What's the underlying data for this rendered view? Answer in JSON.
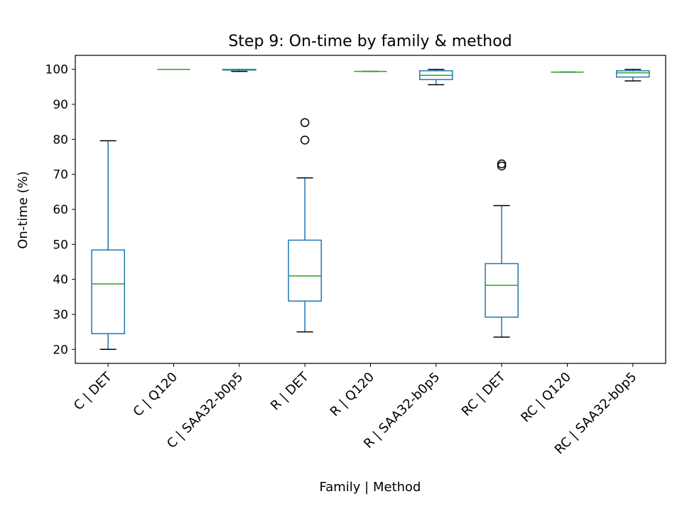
{
  "chart_data": {
    "type": "box",
    "title": "Step 9: On-time by family & method",
    "xlabel": "Family | Method",
    "ylabel": "On-time (%)",
    "ylim": [
      16,
      104
    ],
    "yticks": [
      20,
      30,
      40,
      50,
      60,
      70,
      80,
      90,
      100
    ],
    "grid": false,
    "categories": [
      "C | DET",
      "C | Q120",
      "C | SAA32-b0p5",
      "R | DET",
      "R | Q120",
      "R | SAA32-b0p5",
      "RC | DET",
      "RC | Q120",
      "RC | SAA32-b0p5"
    ],
    "boxes": [
      {
        "whisker_low": 20.0,
        "q1": 24.5,
        "median": 38.7,
        "q3": 48.4,
        "whisker_high": 79.6,
        "outliers": []
      },
      {
        "whisker_low": 100.0,
        "q1": 100.0,
        "median": 100.0,
        "q3": 100.0,
        "whisker_high": 100.0,
        "outliers": []
      },
      {
        "whisker_low": 99.4,
        "q1": 99.8,
        "median": 100.0,
        "q3": 100.0,
        "whisker_high": 100.0,
        "outliers": []
      },
      {
        "whisker_low": 25.0,
        "q1": 33.8,
        "median": 41.0,
        "q3": 51.2,
        "whisker_high": 69.0,
        "outliers": [
          79.8,
          84.8
        ]
      },
      {
        "whisker_low": 99.4,
        "q1": 99.4,
        "median": 99.4,
        "q3": 99.4,
        "whisker_high": 99.4,
        "outliers": []
      },
      {
        "whisker_low": 95.6,
        "q1": 97.1,
        "median": 98.3,
        "q3": 99.6,
        "whisker_high": 100.0,
        "outliers": []
      },
      {
        "whisker_low": 23.5,
        "q1": 29.2,
        "median": 38.3,
        "q3": 44.5,
        "whisker_high": 61.1,
        "outliers": [
          72.4,
          73.0
        ]
      },
      {
        "whisker_low": 99.2,
        "q1": 99.2,
        "median": 99.2,
        "q3": 99.2,
        "whisker_high": 99.2,
        "outliers": []
      },
      {
        "whisker_low": 96.7,
        "q1": 97.8,
        "median": 99.0,
        "q3": 99.6,
        "whisker_high": 100.0,
        "outliers": []
      }
    ],
    "colors": {
      "box": "#1f77b4",
      "median": "#2ca02c",
      "whisker_cap": "#000000",
      "outlier": "#000000",
      "axes": "#000000"
    }
  }
}
